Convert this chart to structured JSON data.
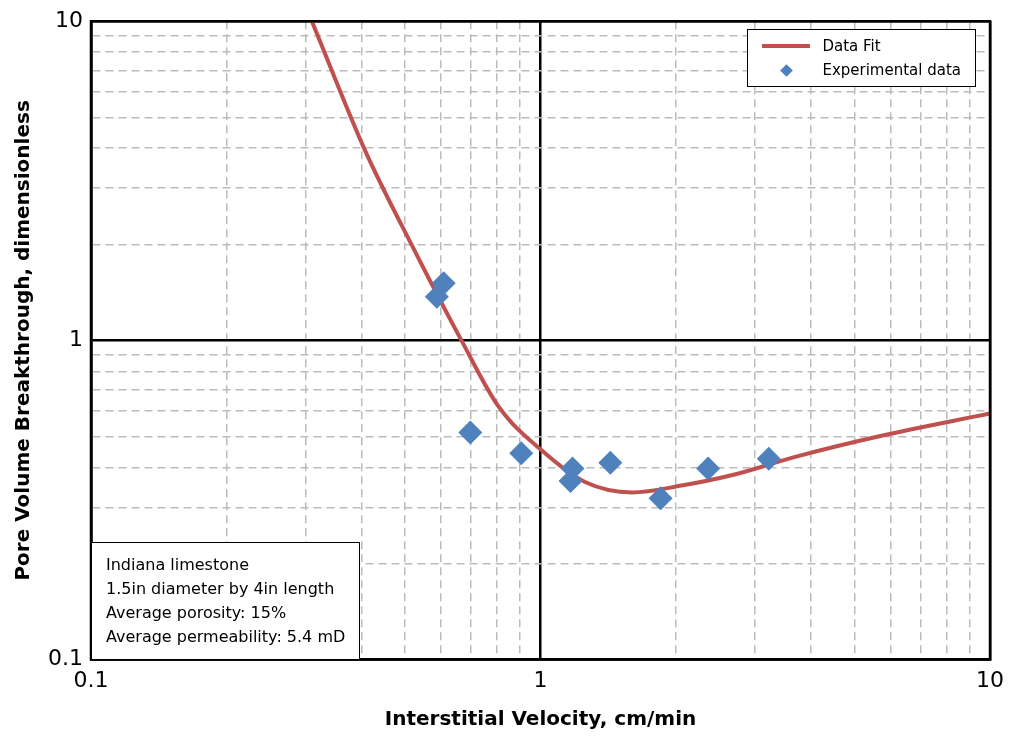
{
  "chart_data": {
    "type": "scatter",
    "xlabel": "Interstitial Velocity, cm/min",
    "ylabel": "Pore Volume Breakthrough, dimensionless",
    "log": "xy",
    "grid": true,
    "legend": "top right",
    "xlim": [
      0.1,
      10
    ],
    "ylim": [
      0.1,
      10
    ],
    "xticks": [
      0.1,
      {
        "value": 0.2,
        "label": null
      },
      {
        "value": 0.3,
        "label": null
      },
      {
        "value": 0.4,
        "label": null
      },
      {
        "value": 0.5,
        "label": null
      },
      {
        "value": 0.6,
        "label": null
      },
      {
        "value": 0.7,
        "label": null
      },
      {
        "value": 0.8,
        "label": null
      },
      {
        "value": 0.9,
        "label": null
      },
      1,
      {
        "value": 2,
        "label": null
      },
      {
        "value": 3,
        "label": null
      },
      {
        "value": 4,
        "label": null
      },
      {
        "value": 5,
        "label": null
      },
      {
        "value": 6,
        "label": null
      },
      {
        "value": 7,
        "label": null
      },
      {
        "value": 8,
        "label": null
      },
      {
        "value": 9,
        "label": null
      },
      10
    ],
    "yticks": [
      0.1,
      {
        "value": 0.2,
        "label": null
      },
      {
        "value": 0.3,
        "label": null
      },
      {
        "value": 0.4,
        "label": null
      },
      {
        "value": 0.5,
        "label": null
      },
      {
        "value": 0.6,
        "label": null
      },
      {
        "value": 0.7,
        "label": null
      },
      {
        "value": 0.8,
        "label": null
      },
      {
        "value": 0.9,
        "label": null
      },
      1,
      {
        "value": 2,
        "label": null
      },
      {
        "value": 3,
        "label": null
      },
      {
        "value": 4,
        "label": null
      },
      {
        "value": 5,
        "label": null
      },
      {
        "value": 6,
        "label": null
      },
      {
        "value": 7,
        "label": null
      },
      {
        "value": 8,
        "label": null
      },
      {
        "value": 9,
        "label": null
      },
      10
    ],
    "series": [
      {
        "name": "Data Fit",
        "type": "line",
        "marker": "none",
        "line_style": "solid",
        "color": "#c0504d",
        "x": [
          0.31,
          0.407,
          0.518,
          0.667,
          0.807,
          1.01,
          1.256,
          1.6,
          2.06,
          2.66,
          3.74,
          5.64,
          10
        ],
        "values": [
          10,
          3.94,
          1.98,
          1,
          0.62,
          0.45,
          0.36,
          0.334,
          0.351,
          0.378,
          0.434,
          0.5,
          0.59
        ]
      },
      {
        "name": "Experimental data",
        "marker": "diamond",
        "color": "#4f81bd",
        "x": [
          0.588,
          0.609,
          0.698,
          0.906,
          1.178,
          1.166,
          1.43,
          1.85,
          2.36,
          3.22
        ],
        "values": [
          1.37,
          1.51,
          0.515,
          0.443,
          0.397,
          0.363,
          0.414,
          0.32,
          0.397,
          0.426
        ]
      }
    ],
    "annotations": [
      "Indiana limestone",
      "1.5in diameter by 4in length",
      "Average porosity: 15%",
      "Average permeability: 5.4 mD"
    ]
  }
}
